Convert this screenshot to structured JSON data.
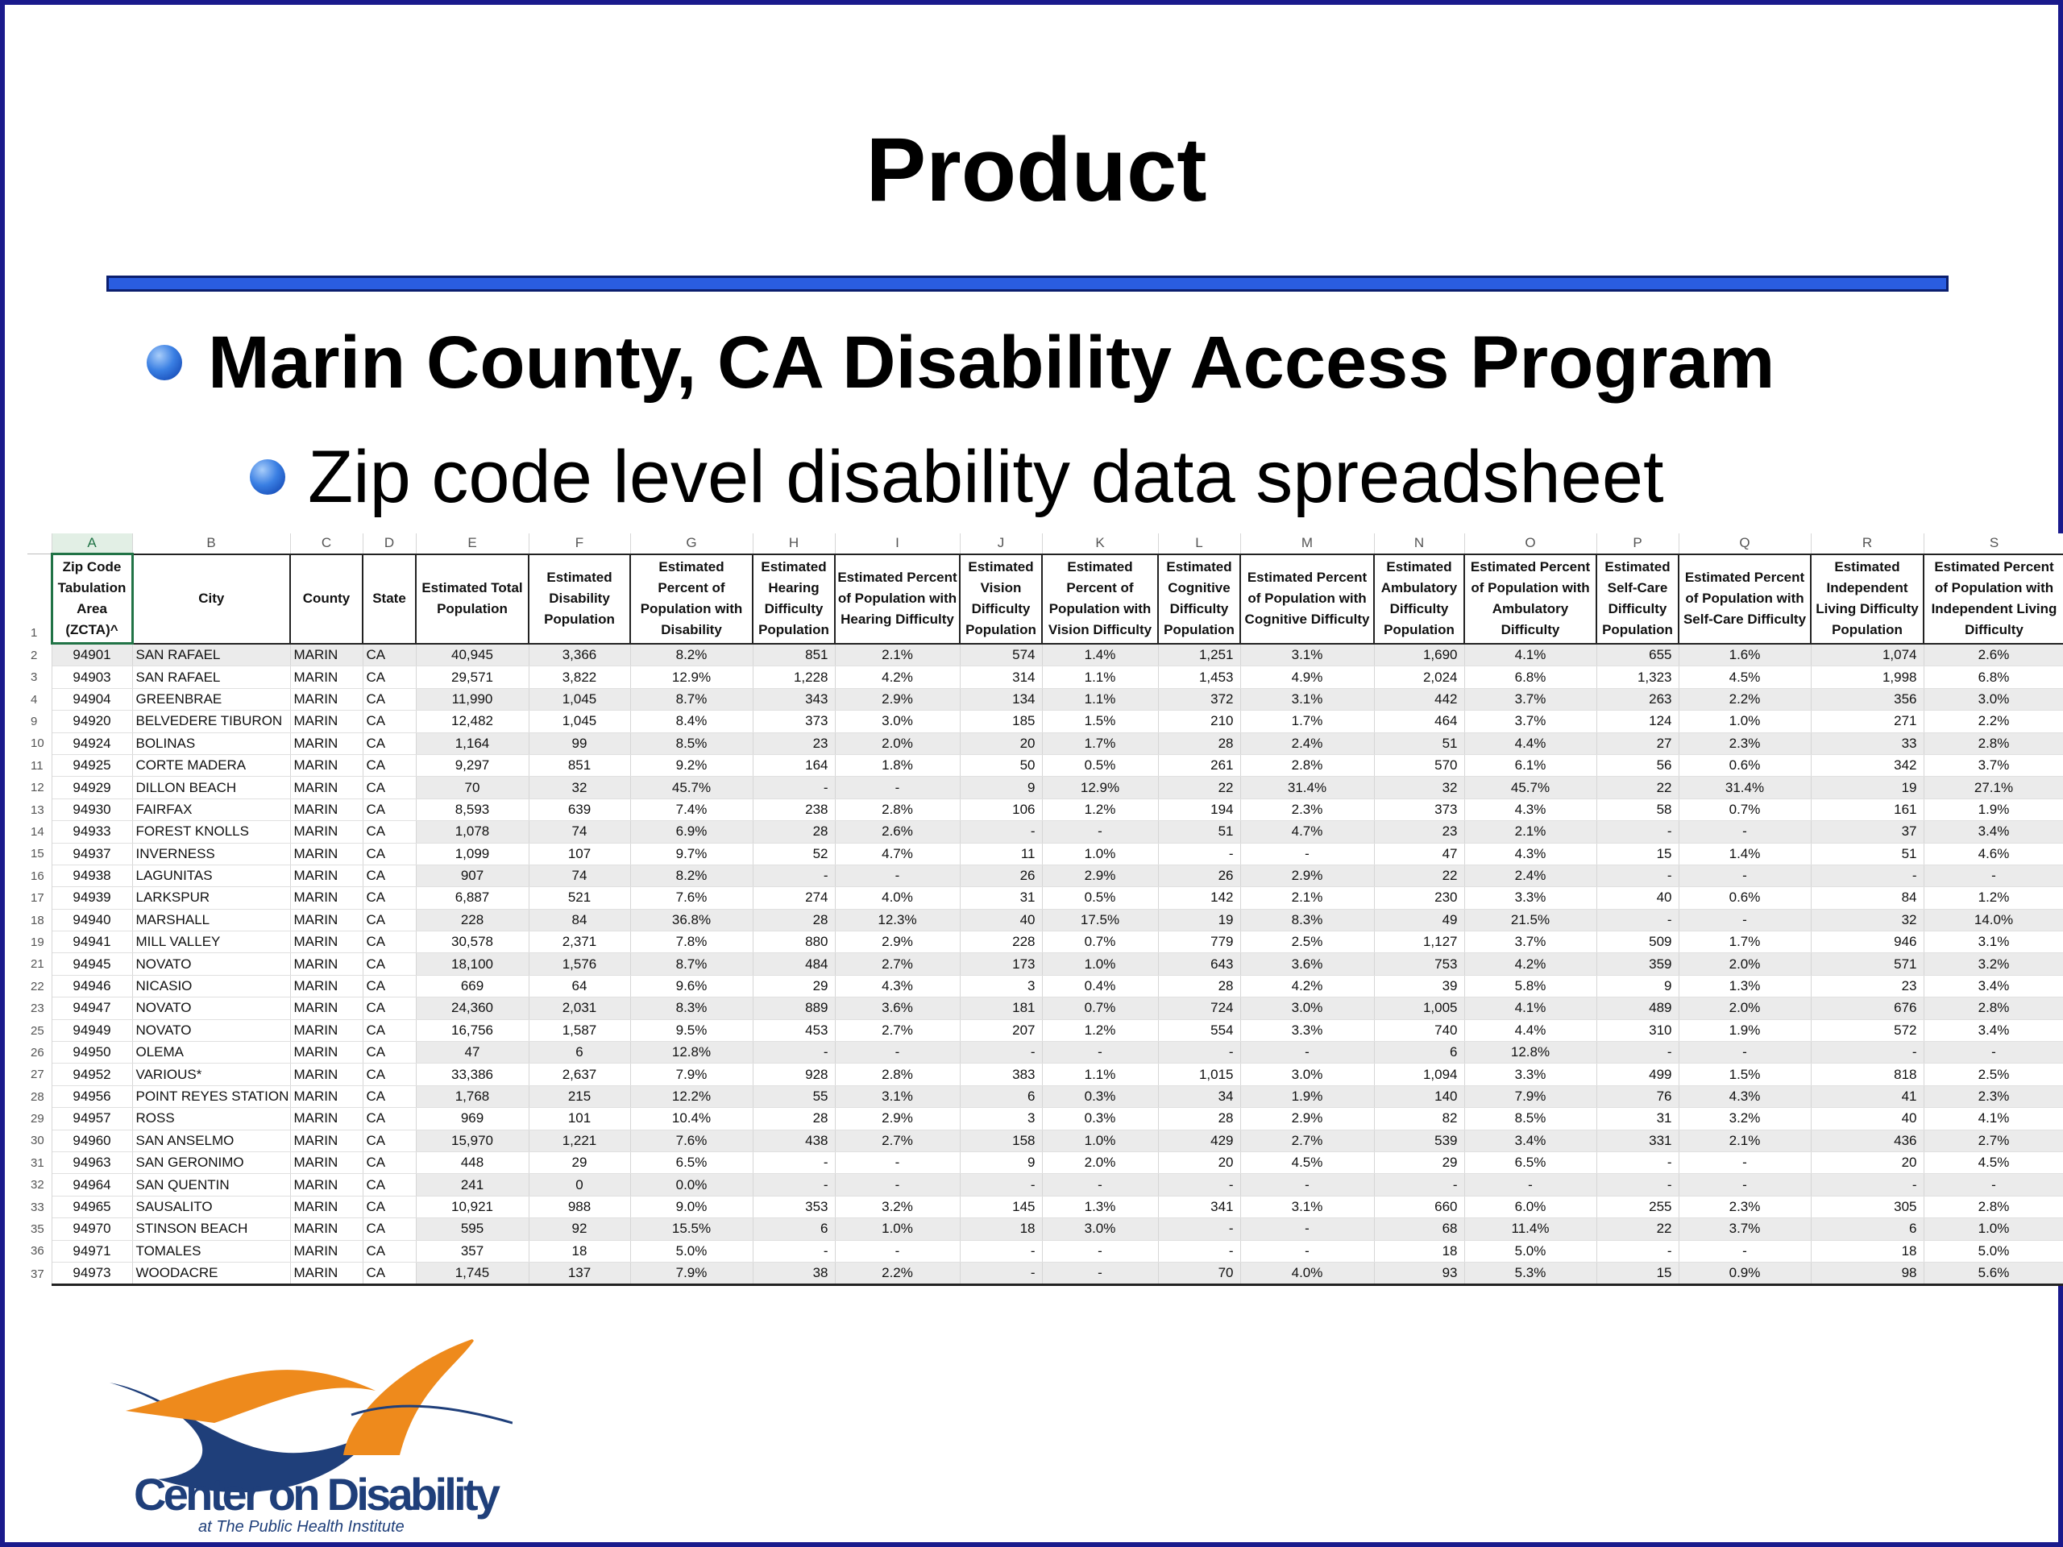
{
  "slide": {
    "title": "Product",
    "bullet1": "Marin County, CA Disability Access Program",
    "bullet2": "Zip code level disability data spreadsheet"
  },
  "spreadsheet": {
    "column_letters": [
      "A",
      "B",
      "C",
      "D",
      "E",
      "F",
      "G",
      "H",
      "I",
      "J",
      "K",
      "L",
      "M",
      "N",
      "O",
      "P",
      "Q",
      "R",
      "S"
    ],
    "header_row_number": "1",
    "headers": [
      "Zip Code Tabulation Area (ZCTA)^",
      "City",
      "County",
      "State",
      "Estimated Total Population",
      "Estimated Disability Population",
      "Estimated Percent of Population with Disability",
      "Estimated Hearing Difficulty Population",
      "Estimated Percent of Population with Hearing Difficulty",
      "Estimated Vision Difficulty Population",
      "Estimated Percent of Population with Vision Difficulty",
      "Estimated Cognitive Difficulty Population",
      "Estimated Percent of Population with Cognitive Difficulty",
      "Estimated Ambulatory Difficulty Population",
      "Estimated Percent of Population with Ambulatory Difficulty",
      "Estimated Self-Care Difficulty Population",
      "Estimated Percent of Population with Self-Care Difficulty",
      "Estimated Independent Living Difficulty Population",
      "Estimated Percent of Population with Independent Living Difficulty"
    ],
    "rows": [
      {
        "n": "2",
        "cells": [
          "94901",
          "SAN RAFAEL",
          "MARIN",
          "CA",
          "40,945",
          "3,366",
          "8.2%",
          "851",
          "2.1%",
          "574",
          "1.4%",
          "1,251",
          "3.1%",
          "1,690",
          "4.1%",
          "655",
          "1.6%",
          "1,074",
          "2.6%"
        ]
      },
      {
        "n": "3",
        "cells": [
          "94903",
          "SAN RAFAEL",
          "MARIN",
          "CA",
          "29,571",
          "3,822",
          "12.9%",
          "1,228",
          "4.2%",
          "314",
          "1.1%",
          "1,453",
          "4.9%",
          "2,024",
          "6.8%",
          "1,323",
          "4.5%",
          "1,998",
          "6.8%"
        ]
      },
      {
        "n": "4",
        "cells": [
          "94904",
          "GREENBRAE",
          "MARIN",
          "CA",
          "11,990",
          "1,045",
          "8.7%",
          "343",
          "2.9%",
          "134",
          "1.1%",
          "372",
          "3.1%",
          "442",
          "3.7%",
          "263",
          "2.2%",
          "356",
          "3.0%"
        ]
      },
      {
        "n": "9",
        "cells": [
          "94920",
          "BELVEDERE TIBURON",
          "MARIN",
          "CA",
          "12,482",
          "1,045",
          "8.4%",
          "373",
          "3.0%",
          "185",
          "1.5%",
          "210",
          "1.7%",
          "464",
          "3.7%",
          "124",
          "1.0%",
          "271",
          "2.2%"
        ]
      },
      {
        "n": "10",
        "cells": [
          "94924",
          "BOLINAS",
          "MARIN",
          "CA",
          "1,164",
          "99",
          "8.5%",
          "23",
          "2.0%",
          "20",
          "1.7%",
          "28",
          "2.4%",
          "51",
          "4.4%",
          "27",
          "2.3%",
          "33",
          "2.8%"
        ]
      },
      {
        "n": "11",
        "cells": [
          "94925",
          "CORTE MADERA",
          "MARIN",
          "CA",
          "9,297",
          "851",
          "9.2%",
          "164",
          "1.8%",
          "50",
          "0.5%",
          "261",
          "2.8%",
          "570",
          "6.1%",
          "56",
          "0.6%",
          "342",
          "3.7%"
        ]
      },
      {
        "n": "12",
        "cells": [
          "94929",
          "DILLON BEACH",
          "MARIN",
          "CA",
          "70",
          "32",
          "45.7%",
          "-",
          "-",
          "9",
          "12.9%",
          "22",
          "31.4%",
          "32",
          "45.7%",
          "22",
          "31.4%",
          "19",
          "27.1%"
        ]
      },
      {
        "n": "13",
        "cells": [
          "94930",
          "FAIRFAX",
          "MARIN",
          "CA",
          "8,593",
          "639",
          "7.4%",
          "238",
          "2.8%",
          "106",
          "1.2%",
          "194",
          "2.3%",
          "373",
          "4.3%",
          "58",
          "0.7%",
          "161",
          "1.9%"
        ]
      },
      {
        "n": "14",
        "cells": [
          "94933",
          "FOREST KNOLLS",
          "MARIN",
          "CA",
          "1,078",
          "74",
          "6.9%",
          "28",
          "2.6%",
          "-",
          "-",
          "51",
          "4.7%",
          "23",
          "2.1%",
          "-",
          "-",
          "37",
          "3.4%"
        ]
      },
      {
        "n": "15",
        "cells": [
          "94937",
          "INVERNESS",
          "MARIN",
          "CA",
          "1,099",
          "107",
          "9.7%",
          "52",
          "4.7%",
          "11",
          "1.0%",
          "-",
          "-",
          "47",
          "4.3%",
          "15",
          "1.4%",
          "51",
          "4.6%"
        ]
      },
      {
        "n": "16",
        "cells": [
          "94938",
          "LAGUNITAS",
          "MARIN",
          "CA",
          "907",
          "74",
          "8.2%",
          "-",
          "-",
          "26",
          "2.9%",
          "26",
          "2.9%",
          "22",
          "2.4%",
          "-",
          "-",
          "-",
          "-"
        ]
      },
      {
        "n": "17",
        "cells": [
          "94939",
          "LARKSPUR",
          "MARIN",
          "CA",
          "6,887",
          "521",
          "7.6%",
          "274",
          "4.0%",
          "31",
          "0.5%",
          "142",
          "2.1%",
          "230",
          "3.3%",
          "40",
          "0.6%",
          "84",
          "1.2%"
        ]
      },
      {
        "n": "18",
        "cells": [
          "94940",
          "MARSHALL",
          "MARIN",
          "CA",
          "228",
          "84",
          "36.8%",
          "28",
          "12.3%",
          "40",
          "17.5%",
          "19",
          "8.3%",
          "49",
          "21.5%",
          "-",
          "-",
          "32",
          "14.0%"
        ]
      },
      {
        "n": "19",
        "cells": [
          "94941",
          "MILL VALLEY",
          "MARIN",
          "CA",
          "30,578",
          "2,371",
          "7.8%",
          "880",
          "2.9%",
          "228",
          "0.7%",
          "779",
          "2.5%",
          "1,127",
          "3.7%",
          "509",
          "1.7%",
          "946",
          "3.1%"
        ]
      },
      {
        "n": "21",
        "cells": [
          "94945",
          "NOVATO",
          "MARIN",
          "CA",
          "18,100",
          "1,576",
          "8.7%",
          "484",
          "2.7%",
          "173",
          "1.0%",
          "643",
          "3.6%",
          "753",
          "4.2%",
          "359",
          "2.0%",
          "571",
          "3.2%"
        ]
      },
      {
        "n": "22",
        "cells": [
          "94946",
          "NICASIO",
          "MARIN",
          "CA",
          "669",
          "64",
          "9.6%",
          "29",
          "4.3%",
          "3",
          "0.4%",
          "28",
          "4.2%",
          "39",
          "5.8%",
          "9",
          "1.3%",
          "23",
          "3.4%"
        ]
      },
      {
        "n": "23",
        "cells": [
          "94947",
          "NOVATO",
          "MARIN",
          "CA",
          "24,360",
          "2,031",
          "8.3%",
          "889",
          "3.6%",
          "181",
          "0.7%",
          "724",
          "3.0%",
          "1,005",
          "4.1%",
          "489",
          "2.0%",
          "676",
          "2.8%"
        ]
      },
      {
        "n": "25",
        "cells": [
          "94949",
          "NOVATO",
          "MARIN",
          "CA",
          "16,756",
          "1,587",
          "9.5%",
          "453",
          "2.7%",
          "207",
          "1.2%",
          "554",
          "3.3%",
          "740",
          "4.4%",
          "310",
          "1.9%",
          "572",
          "3.4%"
        ]
      },
      {
        "n": "26",
        "cells": [
          "94950",
          "OLEMA",
          "MARIN",
          "CA",
          "47",
          "6",
          "12.8%",
          "-",
          "-",
          "-",
          "-",
          "-",
          "-",
          "6",
          "12.8%",
          "-",
          "-",
          "-",
          "-"
        ]
      },
      {
        "n": "27",
        "cells": [
          "94952",
          "VARIOUS*",
          "MARIN",
          "CA",
          "33,386",
          "2,637",
          "7.9%",
          "928",
          "2.8%",
          "383",
          "1.1%",
          "1,015",
          "3.0%",
          "1,094",
          "3.3%",
          "499",
          "1.5%",
          "818",
          "2.5%"
        ]
      },
      {
        "n": "28",
        "cells": [
          "94956",
          "POINT REYES STATION",
          "MARIN",
          "CA",
          "1,768",
          "215",
          "12.2%",
          "55",
          "3.1%",
          "6",
          "0.3%",
          "34",
          "1.9%",
          "140",
          "7.9%",
          "76",
          "4.3%",
          "41",
          "2.3%"
        ]
      },
      {
        "n": "29",
        "cells": [
          "94957",
          "ROSS",
          "MARIN",
          "CA",
          "969",
          "101",
          "10.4%",
          "28",
          "2.9%",
          "3",
          "0.3%",
          "28",
          "2.9%",
          "82",
          "8.5%",
          "31",
          "3.2%",
          "40",
          "4.1%"
        ]
      },
      {
        "n": "30",
        "cells": [
          "94960",
          "SAN ANSELMO",
          "MARIN",
          "CA",
          "15,970",
          "1,221",
          "7.6%",
          "438",
          "2.7%",
          "158",
          "1.0%",
          "429",
          "2.7%",
          "539",
          "3.4%",
          "331",
          "2.1%",
          "436",
          "2.7%"
        ]
      },
      {
        "n": "31",
        "cells": [
          "94963",
          "SAN GERONIMO",
          "MARIN",
          "CA",
          "448",
          "29",
          "6.5%",
          "-",
          "-",
          "9",
          "2.0%",
          "20",
          "4.5%",
          "29",
          "6.5%",
          "-",
          "-",
          "20",
          "4.5%"
        ]
      },
      {
        "n": "32",
        "cells": [
          "94964",
          "SAN QUENTIN",
          "MARIN",
          "CA",
          "241",
          "0",
          "0.0%",
          "-",
          "-",
          "-",
          "-",
          "-",
          "-",
          "-",
          "-",
          "-",
          "-",
          "-",
          "-"
        ]
      },
      {
        "n": "33",
        "cells": [
          "94965",
          "SAUSALITO",
          "MARIN",
          "CA",
          "10,921",
          "988",
          "9.0%",
          "353",
          "3.2%",
          "145",
          "1.3%",
          "341",
          "3.1%",
          "660",
          "6.0%",
          "255",
          "2.3%",
          "305",
          "2.8%"
        ]
      },
      {
        "n": "35",
        "cells": [
          "94970",
          "STINSON BEACH",
          "MARIN",
          "CA",
          "595",
          "92",
          "15.5%",
          "6",
          "1.0%",
          "18",
          "3.0%",
          "-",
          "-",
          "68",
          "11.4%",
          "22",
          "3.7%",
          "6",
          "1.0%"
        ]
      },
      {
        "n": "36",
        "cells": [
          "94971",
          "TOMALES",
          "MARIN",
          "CA",
          "357",
          "18",
          "5.0%",
          "-",
          "-",
          "-",
          "-",
          "-",
          "-",
          "18",
          "5.0%",
          "-",
          "-",
          "18",
          "5.0%"
        ]
      },
      {
        "n": "37",
        "cells": [
          "94973",
          "WOODACRE",
          "MARIN",
          "CA",
          "1,745",
          "137",
          "7.9%",
          "38",
          "2.2%",
          "-",
          "-",
          "70",
          "4.0%",
          "93",
          "5.3%",
          "15",
          "0.9%",
          "98",
          "5.6%"
        ]
      }
    ]
  },
  "logo": {
    "line1": "Center on Disability",
    "line2": "at The Public Health Institute"
  },
  "colors": {
    "frame": "#1a1a8c",
    "rule": "#2a5de0",
    "logo_orange": "#ee8a1c",
    "logo_navy": "#1f3f7a"
  }
}
